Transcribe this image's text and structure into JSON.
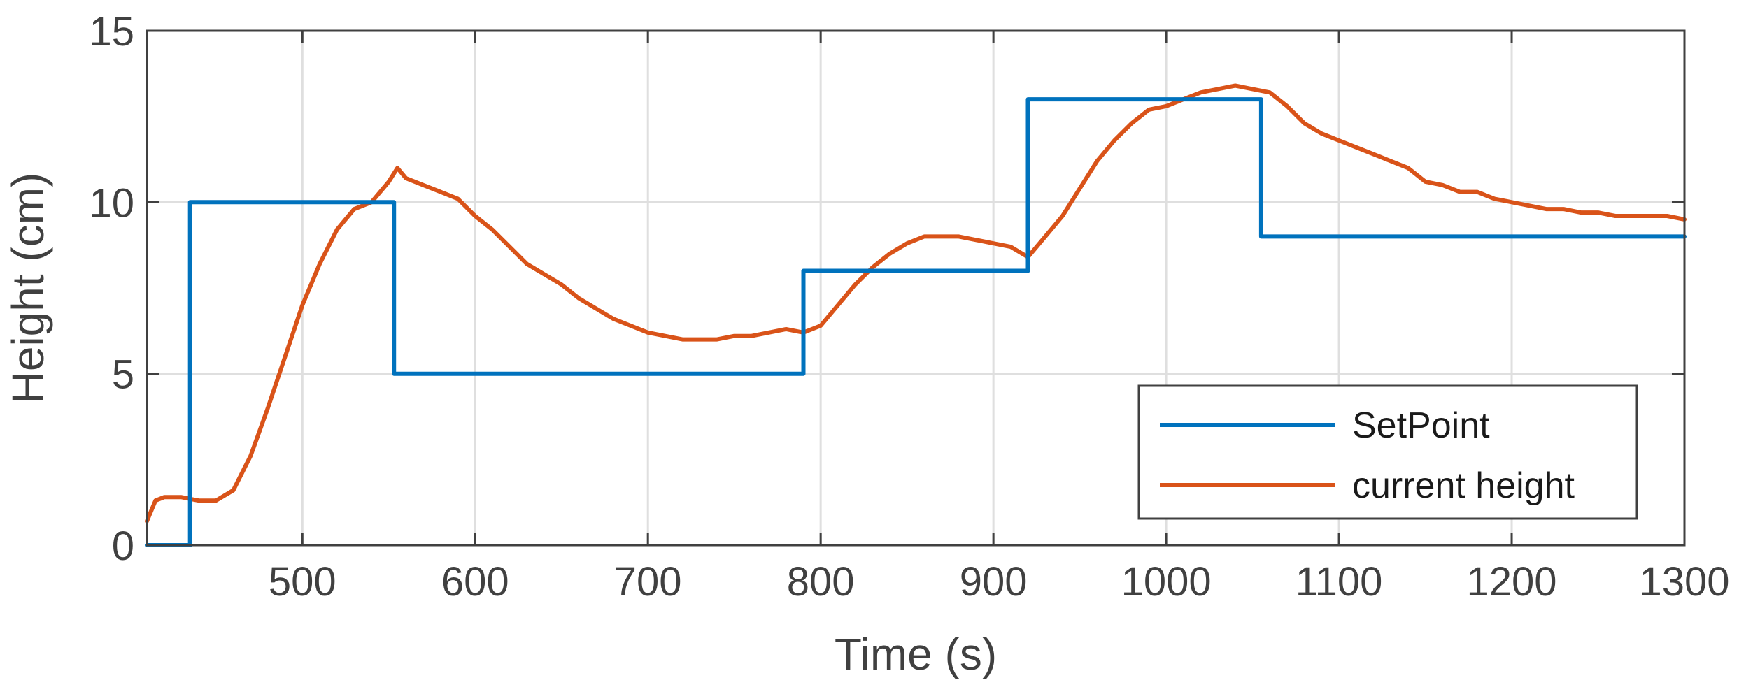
{
  "chart_data": {
    "type": "line",
    "xlabel": "Time (s)",
    "ylabel": "Height (cm)",
    "xlim": [
      410,
      1300
    ],
    "ylim": [
      0,
      15
    ],
    "x_ticks": [
      500,
      600,
      700,
      800,
      900,
      1000,
      1100,
      1200,
      1300
    ],
    "y_ticks": [
      0,
      5,
      10,
      15
    ],
    "x_tick_labels": [
      "500",
      "600",
      "700",
      "800",
      "900",
      "1000",
      "1100",
      "1200",
      "1300"
    ],
    "y_tick_labels": [
      "0",
      "5",
      "10",
      "15"
    ],
    "grid": true,
    "legend_position": "bottom-right",
    "colors": {
      "setpoint": "#0072BD",
      "current": "#D95319",
      "axes": "#404040",
      "grid": "#DFDFDF"
    },
    "series": [
      {
        "name": "SetPoint",
        "step": true,
        "x": [
          410,
          435,
          435,
          553,
          553,
          790,
          790,
          920,
          920,
          1055,
          1055,
          1300
        ],
        "values": [
          0,
          0,
          10,
          10,
          5,
          5,
          8,
          8,
          13,
          13,
          9,
          9
        ]
      },
      {
        "name": "current height",
        "x": [
          410,
          415,
          420,
          430,
          440,
          450,
          460,
          470,
          480,
          490,
          500,
          510,
          520,
          530,
          540,
          550,
          555,
          560,
          570,
          580,
          590,
          600,
          610,
          620,
          630,
          640,
          650,
          660,
          670,
          680,
          690,
          700,
          710,
          720,
          730,
          740,
          750,
          760,
          770,
          780,
          790,
          800,
          810,
          820,
          830,
          840,
          850,
          860,
          870,
          880,
          890,
          900,
          910,
          920,
          930,
          940,
          950,
          960,
          970,
          980,
          990,
          1000,
          1010,
          1020,
          1030,
          1040,
          1050,
          1060,
          1070,
          1080,
          1090,
          1100,
          1110,
          1120,
          1130,
          1140,
          1150,
          1160,
          1170,
          1180,
          1190,
          1200,
          1210,
          1220,
          1230,
          1240,
          1250,
          1260,
          1270,
          1280,
          1290,
          1300
        ],
        "values": [
          0.7,
          1.3,
          1.4,
          1.4,
          1.3,
          1.3,
          1.6,
          2.6,
          4.0,
          5.5,
          7.0,
          8.2,
          9.2,
          9.8,
          10.0,
          10.6,
          11.0,
          10.7,
          10.5,
          10.3,
          10.1,
          9.6,
          9.2,
          8.7,
          8.2,
          7.9,
          7.6,
          7.2,
          6.9,
          6.6,
          6.4,
          6.2,
          6.1,
          6.0,
          6.0,
          6.0,
          6.1,
          6.1,
          6.2,
          6.3,
          6.2,
          6.4,
          7.0,
          7.6,
          8.1,
          8.5,
          8.8,
          9.0,
          9.0,
          9.0,
          8.9,
          8.8,
          8.7,
          8.4,
          9.0,
          9.6,
          10.4,
          11.2,
          11.8,
          12.3,
          12.7,
          12.8,
          13.0,
          13.2,
          13.3,
          13.4,
          13.3,
          13.2,
          12.8,
          12.3,
          12.0,
          11.8,
          11.6,
          11.4,
          11.2,
          11.0,
          10.6,
          10.5,
          10.3,
          10.3,
          10.1,
          10.0,
          9.9,
          9.8,
          9.8,
          9.7,
          9.7,
          9.6,
          9.6,
          9.6,
          9.6,
          9.5
        ]
      }
    ]
  }
}
